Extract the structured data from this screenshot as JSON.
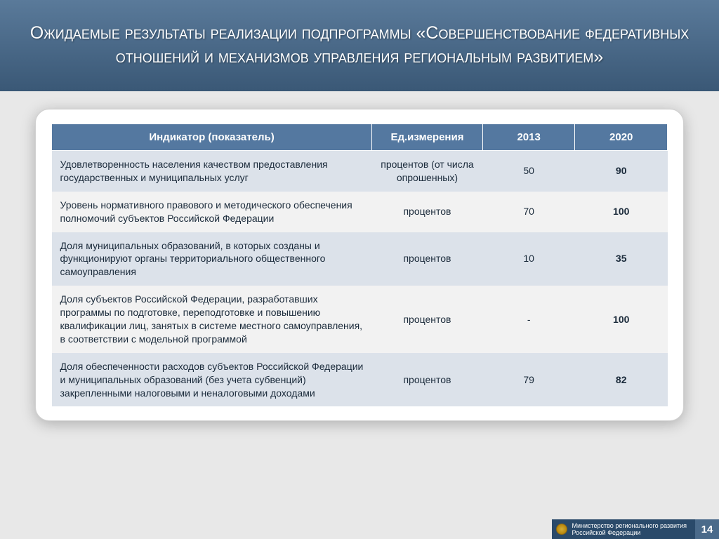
{
  "title": "Ожидаемые результаты реализации подпрограммы «Совершенствование федеративных отношений и механизмов управления региональным развитием»",
  "table": {
    "columns": [
      "Индикатор (показатель)",
      "Ед.измерения",
      "2013",
      "2020"
    ],
    "rows": [
      {
        "indicator": "Удовлетворенность населения качеством предоставления государственных и муниципальных услуг",
        "unit": "процентов (от числа опрошенных)",
        "y2013": "50",
        "y2020": "90"
      },
      {
        "indicator": "Уровень нормативного правового и методического обеспечения полномочий субъектов Российской Федерации",
        "unit": "процентов",
        "y2013": "70",
        "y2020": "100"
      },
      {
        "indicator": "Доля муниципальных образований, в которых созданы и функционируют органы территориального общественного самоуправления",
        "unit": "процентов",
        "y2013": "10",
        "y2020": "35"
      },
      {
        "indicator": "Доля субъектов Российской Федерации, разработавших программы по подготовке, переподготовке и повышению квалификации лиц, занятых в системе местного самоуправления, в соответствии с модельной программой",
        "unit": "процентов",
        "y2013": "-",
        "y2020": "100"
      },
      {
        "indicator": "Доля обеспеченности расходов субъектов Российской Федерации и муниципальных образований (без учета субвенций) закрепленными налоговыми и неналоговыми доходами",
        "unit": "процентов",
        "y2013": "79",
        "y2020": "82"
      }
    ]
  },
  "footer": {
    "ministry_line1": "Министерство регионального развития",
    "ministry_line2": "Российской Федерации",
    "page": "14"
  },
  "style": {
    "header_bg_top": "#5a7a9a",
    "header_bg_bottom": "#3a5876",
    "th_bg": "#5478a0",
    "row_odd_bg": "#dce2ea",
    "row_even_bg": "#f2f2f2",
    "card_bg": "#ffffff",
    "page_bg": "#e8e8e8",
    "footer_bg": "#2a4a6a",
    "pagenum_bg": "#4a6a8a",
    "title_color": "#ffffff",
    "text_color": "#1a2a3a",
    "title_fontsize": 25,
    "th_fontsize": 15,
    "td_fontsize": 14,
    "col_widths_pct": [
      52,
      18,
      15,
      15
    ]
  }
}
